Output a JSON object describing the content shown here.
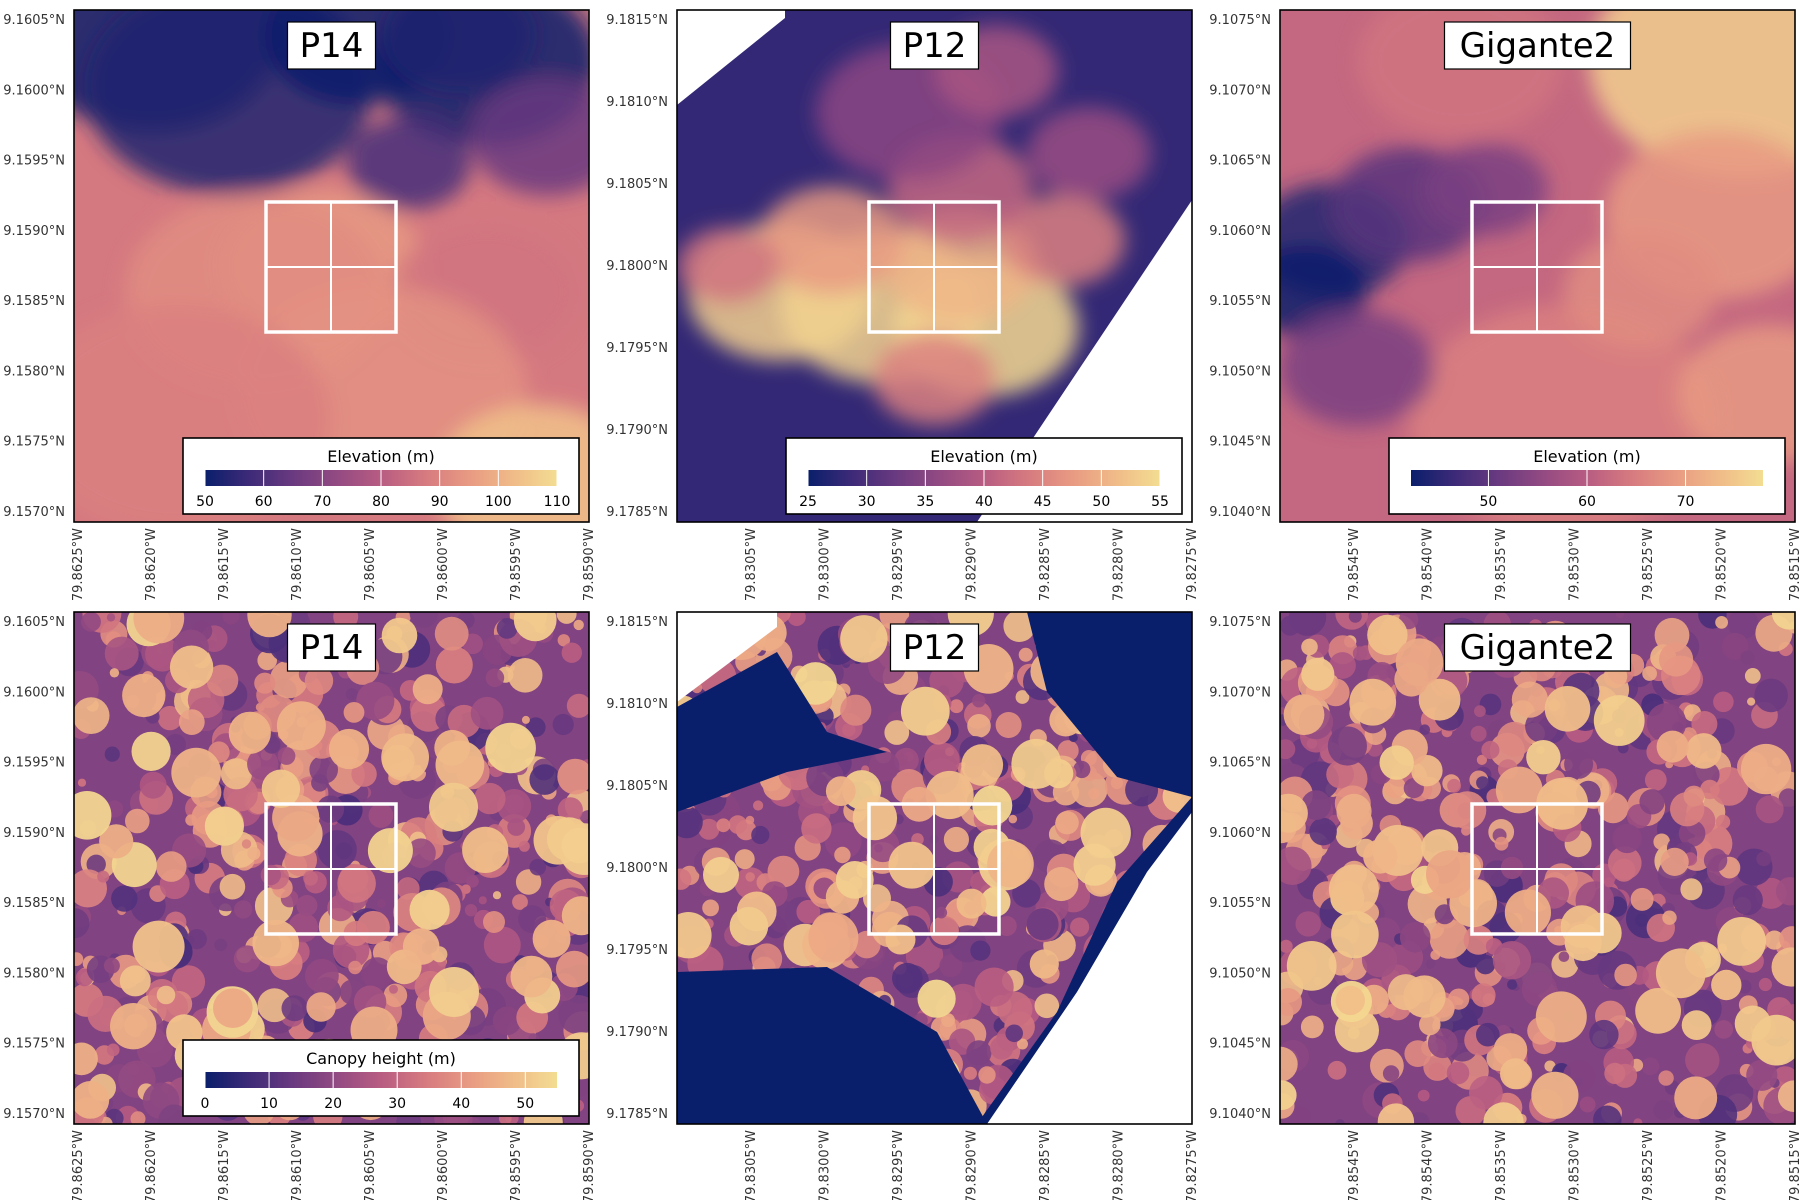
{
  "panels": [
    {
      "title": "P14",
      "kind": "elev",
      "y_ticks": [
        "9.1605°N",
        "9.1600°N",
        "9.1595°N",
        "9.1590°N",
        "9.1585°N",
        "9.1580°N",
        "9.1575°N",
        "9.1570°N"
      ],
      "x_ticks": [
        "79.8625°W",
        "79.8620°W",
        "79.8615°W",
        "79.8610°W",
        "79.8605°W",
        "79.8600°W",
        "79.8595°W",
        "79.8590°W"
      ],
      "legend": {
        "title": "Elevation (m)",
        "ticks": [
          "50",
          "60",
          "70",
          "80",
          "90",
          "100",
          "110"
        ]
      }
    },
    {
      "title": "P12",
      "kind": "elev",
      "y_ticks": [
        "9.1815°N",
        "9.1810°N",
        "9.1805°N",
        "9.1800°N",
        "9.1795°N",
        "9.1790°N",
        "9.1785°N"
      ],
      "x_ticks": [
        "79.8305°W",
        "79.8300°W",
        "79.8295°W",
        "79.8290°W",
        "79.8285°W",
        "79.8280°W",
        "79.8275°W"
      ],
      "legend": {
        "title": "Elevation (m)",
        "ticks": [
          "25",
          "30",
          "35",
          "40",
          "45",
          "50",
          "55"
        ]
      }
    },
    {
      "title": "Gigante2",
      "kind": "elev",
      "y_ticks": [
        "9.1075°N",
        "9.1070°N",
        "9.1065°N",
        "9.1060°N",
        "9.1055°N",
        "9.1050°N",
        "9.1045°N",
        "9.1040°N"
      ],
      "x_ticks": [
        "79.8545°W",
        "79.8540°W",
        "79.8535°W",
        "79.8530°W",
        "79.8525°W",
        "79.8520°W",
        "79.8515°W"
      ],
      "legend": {
        "title": "Elevation (m)",
        "ticks": [
          "50",
          "60",
          "70"
        ]
      }
    },
    {
      "title": "P14",
      "kind": "canopy",
      "y_ticks": [
        "9.1605°N",
        "9.1600°N",
        "9.1595°N",
        "9.1590°N",
        "9.1585°N",
        "9.1580°N",
        "9.1575°N",
        "9.1570°N"
      ],
      "x_ticks": [
        "79.8625°W",
        "79.8620°W",
        "79.8615°W",
        "79.8610°W",
        "79.8605°W",
        "79.8600°W",
        "79.8595°W",
        "79.8590°W"
      ],
      "legend": {
        "title": "Canopy height (m)",
        "ticks": [
          "0",
          "10",
          "20",
          "30",
          "40",
          "50"
        ]
      }
    },
    {
      "title": "P12",
      "kind": "canopy",
      "y_ticks": [
        "9.1815°N",
        "9.1810°N",
        "9.1805°N",
        "9.1800°N",
        "9.1795°N",
        "9.1790°N",
        "9.1785°N"
      ],
      "x_ticks": [
        "79.8305°W",
        "79.8300°W",
        "79.8295°W",
        "79.8290°W",
        "79.8285°W",
        "79.8280°W",
        "79.8275°W"
      ],
      "legend": null
    },
    {
      "title": "Gigante2",
      "kind": "canopy",
      "y_ticks": [
        "9.1075°N",
        "9.1070°N",
        "9.1065°N",
        "9.1060°N",
        "9.1055°N",
        "9.1050°N",
        "9.1045°N",
        "9.1040°N"
      ],
      "x_ticks": [
        "79.8545°W",
        "79.8540°W",
        "79.8535°W",
        "79.8530°W",
        "79.8525°W",
        "79.8520°W",
        "79.8515°W"
      ],
      "legend": null
    }
  ],
  "chart_data": [
    {
      "type": "heatmap",
      "title": "P14",
      "colorbar_label": "Elevation (m)",
      "value_range": [
        50,
        110
      ],
      "colorbar_ticks": [
        50,
        60,
        70,
        80,
        90,
        100,
        110
      ],
      "x_ticks": [
        "79.8625°W",
        "79.8620°W",
        "79.8615°W",
        "79.8610°W",
        "79.8605°W",
        "79.8600°W",
        "79.8595°W",
        "79.8590°W"
      ],
      "y_ticks": [
        "9.1605°N",
        "9.1600°N",
        "9.1595°N",
        "9.1590°N",
        "9.1585°N",
        "9.1580°N",
        "9.1575°N",
        "9.1570°N"
      ],
      "plot_outline": "2x2 subplot grid, white"
    },
    {
      "type": "heatmap",
      "title": "P12",
      "colorbar_label": "Elevation (m)",
      "value_range": [
        25,
        55
      ],
      "colorbar_ticks": [
        25,
        30,
        35,
        40,
        45,
        50,
        55
      ],
      "x_ticks": [
        "79.8305°W",
        "79.8300°W",
        "79.8295°W",
        "79.8290°W",
        "79.8285°W",
        "79.8280°W",
        "79.8275°W"
      ],
      "y_ticks": [
        "9.1815°N",
        "9.1810°N",
        "9.1805°N",
        "9.1800°N",
        "9.1795°N",
        "9.1790°N",
        "9.1785°N"
      ],
      "plot_outline": "2x2 subplot grid, white"
    },
    {
      "type": "heatmap",
      "title": "Gigante2",
      "colorbar_label": "Elevation (m)",
      "value_range": [
        45,
        80
      ],
      "colorbar_ticks": [
        50,
        60,
        70
      ],
      "x_ticks": [
        "79.8545°W",
        "79.8540°W",
        "79.8535°W",
        "79.8530°W",
        "79.8525°W",
        "79.8520°W",
        "79.8515°W"
      ],
      "y_ticks": [
        "9.1075°N",
        "9.1070°N",
        "9.1065°N",
        "9.1060°N",
        "9.1055°N",
        "9.1050°N",
        "9.1045°N",
        "9.1040°N"
      ],
      "plot_outline": "2x2 subplot grid, white"
    },
    {
      "type": "heatmap",
      "title": "P14",
      "colorbar_label": "Canopy height (m)",
      "value_range": [
        0,
        55
      ],
      "colorbar_ticks": [
        0,
        10,
        20,
        30,
        40,
        50
      ],
      "x_ticks": [
        "79.8625°W",
        "79.8620°W",
        "79.8615°W",
        "79.8610°W",
        "79.8605°W",
        "79.8600°W",
        "79.8595°W",
        "79.8590°W"
      ],
      "y_ticks": [
        "9.1605°N",
        "9.1600°N",
        "9.1595°N",
        "9.1590°N",
        "9.1585°N",
        "9.1580°N",
        "9.1575°N",
        "9.1570°N"
      ],
      "plot_outline": "2x2 subplot grid, white"
    },
    {
      "type": "heatmap",
      "title": "P12",
      "colorbar_label": "Canopy height (m)",
      "value_range": [
        0,
        55
      ],
      "x_ticks": [
        "79.8305°W",
        "79.8300°W",
        "79.8295°W",
        "79.8290°W",
        "79.8285°W",
        "79.8280°W",
        "79.8275°W"
      ],
      "y_ticks": [
        "9.1815°N",
        "9.1810°N",
        "9.1805°N",
        "9.1800°N",
        "9.1795°N",
        "9.1790°N",
        "9.1785°N"
      ],
      "plot_outline": "2x2 subplot grid, white"
    },
    {
      "type": "heatmap",
      "title": "Gigante2",
      "colorbar_label": "Canopy height (m)",
      "value_range": [
        0,
        55
      ],
      "x_ticks": [
        "79.8545°W",
        "79.8540°W",
        "79.8535°W",
        "79.8530°W",
        "79.8525°W",
        "79.8520°W",
        "79.8515°W"
      ],
      "y_ticks": [
        "9.1075°N",
        "9.1070°N",
        "9.1065°N",
        "9.1060°N",
        "9.1055°N",
        "9.1050°N",
        "9.1045°N",
        "9.1040°N"
      ],
      "plot_outline": "2x2 subplot grid, white"
    }
  ],
  "colors": {
    "palette": [
      "#0a1f6b",
      "#3d2a78",
      "#6a3a80",
      "#934a82",
      "#b85c82",
      "#d67a80",
      "#e89a82",
      "#f0bb88",
      "#f3dd92"
    ],
    "plot_border": "#000000",
    "plot_outline": "#ffffff",
    "nodata": "#ffffff"
  }
}
